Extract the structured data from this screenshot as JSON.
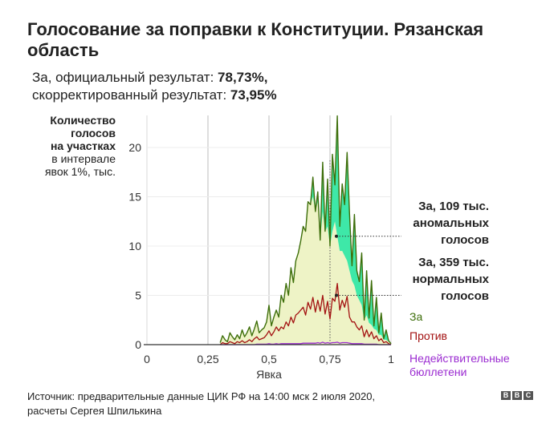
{
  "title": "Голосование за поправки к Конституции. Рязанская область",
  "subtitle": {
    "line1_prefix": "За, официальный результат: ",
    "line1_value": "78,73%,",
    "line2_prefix": "скорректированный результат: ",
    "line2_value": "73,95%"
  },
  "ylabel": {
    "bold_lines": [
      "Количество",
      "голосов",
      "на участках"
    ],
    "normal_lines": [
      "в интервале",
      "явок 1%, тыс."
    ]
  },
  "annotations": {
    "anomalous": [
      "За, 109 тыс.",
      "аномальных",
      "голосов"
    ],
    "normal": [
      "За, 359 тыс.",
      "нормальных",
      "голосов"
    ]
  },
  "footer": {
    "line1": "Источник: предварительные данные ЦИК РФ на 14:00 мск 2 июля 2020,",
    "line2": "расчеты Сергея Шпилькина"
  },
  "logo": [
    "B",
    "B",
    "C"
  ],
  "colors": {
    "za_line": "#3d6e0a",
    "za_normal_fill": "#eef3c6",
    "za_anomalous_fill": "#3ee8a8",
    "protiv": "#a31111",
    "invalid": "#9b2bd1",
    "grid": "#d9d9d9",
    "baseline": "#333333"
  },
  "chart_data": {
    "type": "area",
    "xlabel": "Явка",
    "xlim": [
      0,
      1
    ],
    "ylim": [
      0,
      23
    ],
    "x_ticks": [
      0,
      0.25,
      0.5,
      0.75,
      1
    ],
    "x_tick_labels": [
      "0",
      "0,25",
      "0,5",
      "0,75",
      "1"
    ],
    "y_ticks": [
      0,
      5,
      10,
      15,
      20
    ],
    "y_tick_labels": [
      "0",
      "5",
      "10",
      "15",
      "20"
    ],
    "x": [
      0.3,
      0.31,
      0.32,
      0.33,
      0.34,
      0.35,
      0.36,
      0.37,
      0.38,
      0.39,
      0.4,
      0.41,
      0.42,
      0.43,
      0.44,
      0.45,
      0.46,
      0.47,
      0.48,
      0.49,
      0.5,
      0.51,
      0.52,
      0.53,
      0.54,
      0.55,
      0.56,
      0.57,
      0.58,
      0.59,
      0.6,
      0.61,
      0.62,
      0.63,
      0.64,
      0.65,
      0.66,
      0.67,
      0.68,
      0.69,
      0.7,
      0.71,
      0.72,
      0.73,
      0.74,
      0.75,
      0.76,
      0.77,
      0.78,
      0.79,
      0.8,
      0.81,
      0.82,
      0.83,
      0.84,
      0.85,
      0.86,
      0.87,
      0.88,
      0.89,
      0.9,
      0.91,
      0.92,
      0.93,
      0.94,
      0.95,
      0.96,
      0.97,
      0.98,
      0.99,
      1.0
    ],
    "series": [
      {
        "name": "За",
        "values": [
          0.2,
          0.9,
          0.5,
          0.3,
          1.2,
          0.8,
          0.5,
          1.0,
          0.6,
          1.5,
          0.8,
          1.2,
          1.8,
          0.9,
          1.6,
          2.4,
          1.2,
          1.5,
          1.7,
          2.3,
          4.0,
          1.9,
          2.8,
          3.5,
          2.8,
          5.0,
          4.3,
          6.2,
          5.0,
          7.8,
          6.3,
          8.5,
          9.3,
          10.5,
          12.0,
          11.5,
          14.5,
          14.2,
          17.0,
          13.5,
          15.5,
          10.6,
          18.5,
          11.5,
          16.8,
          10.0,
          19.3,
          16.2,
          23.2,
          12.0,
          16.3,
          14.2,
          19.5,
          13.3,
          8.0,
          13.2,
          7.5,
          6.4,
          9.3,
          2.5,
          7.5,
          2.7,
          6.5,
          1.9,
          4.8,
          1.2,
          3.2,
          0.6,
          1.5,
          0.4,
          0.1
        ]
      },
      {
        "name": "Против",
        "values": [
          0.0,
          0.2,
          0.1,
          0.1,
          0.3,
          0.2,
          0.1,
          0.3,
          0.2,
          0.4,
          0.2,
          0.3,
          0.5,
          0.3,
          0.6,
          0.8,
          0.5,
          0.6,
          0.7,
          1.0,
          1.4,
          0.9,
          1.3,
          1.8,
          1.4,
          1.8,
          1.6,
          2.3,
          1.9,
          2.8,
          2.2,
          3.0,
          3.2,
          3.5,
          3.8,
          3.0,
          4.3,
          3.6,
          4.8,
          3.3,
          4.5,
          3.4,
          5.0,
          3.1,
          4.4,
          2.6,
          4.7,
          4.4,
          6.2,
          3.5,
          4.5,
          3.8,
          4.9,
          2.8,
          2.3,
          2.3,
          1.8,
          1.5,
          1.9,
          0.8,
          1.5,
          0.8,
          1.3,
          0.6,
          0.9,
          0.4,
          0.6,
          0.2,
          0.3,
          0.1,
          0.0
        ]
      },
      {
        "name": "Недействительные бюллетени",
        "values": [
          0,
          0,
          0,
          0,
          0,
          0,
          0,
          0,
          0,
          0,
          0,
          0,
          0,
          0,
          0,
          0.05,
          0.05,
          0.05,
          0.05,
          0.05,
          0.1,
          0.05,
          0.05,
          0.1,
          0.05,
          0.1,
          0.1,
          0.1,
          0.1,
          0.1,
          0.1,
          0.1,
          0.1,
          0.1,
          0.15,
          0.15,
          0.15,
          0.15,
          0.15,
          0.15,
          0.2,
          0.15,
          0.25,
          0.15,
          0.2,
          0.15,
          0.2,
          0.2,
          0.25,
          0.15,
          0.2,
          0.2,
          0.2,
          0.15,
          0.1,
          0.1,
          0.1,
          0.1,
          0.1,
          0.05,
          0.05,
          0.05,
          0.05,
          0.05,
          0.05,
          0,
          0,
          0,
          0,
          0,
          0
        ]
      },
      {
        "name": "За (нормальная часть)",
        "values": [
          0.2,
          0.9,
          0.5,
          0.3,
          1.2,
          0.8,
          0.5,
          1.0,
          0.6,
          1.5,
          0.8,
          1.2,
          1.8,
          0.9,
          1.6,
          2.4,
          1.2,
          1.5,
          1.7,
          2.3,
          4.0,
          1.9,
          2.8,
          3.5,
          2.8,
          5.0,
          4.3,
          6.2,
          5.0,
          7.8,
          6.3,
          8.5,
          9.3,
          10.5,
          12.0,
          11.5,
          14.5,
          14.2,
          15.0,
          13.5,
          14.5,
          10.6,
          13.5,
          11.5,
          12.0,
          10.0,
          11.5,
          12.5,
          11.0,
          9.5,
          9.5,
          9.0,
          8.5,
          7.5,
          6.5,
          6.0,
          5.0,
          4.5,
          4.0,
          2.5,
          3.0,
          2.2,
          2.0,
          1.6,
          1.5,
          1.0,
          1.0,
          0.5,
          0.5,
          0.3,
          0.1
        ]
      }
    ],
    "legend": [
      "За",
      "Против",
      "Недействительные бюллетени"
    ]
  }
}
